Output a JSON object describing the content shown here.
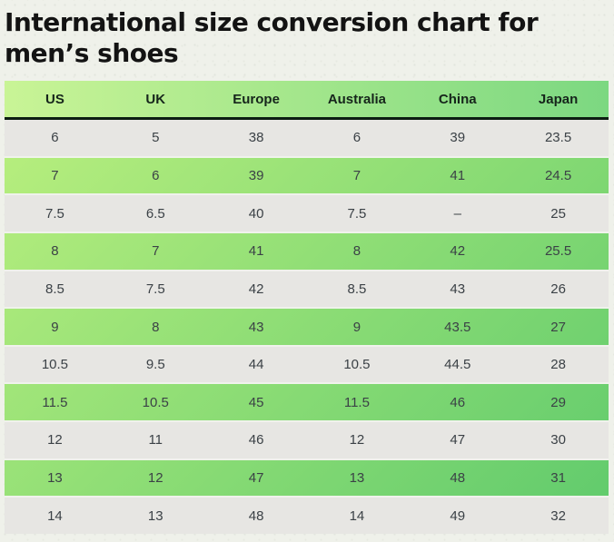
{
  "page": {
    "title_line1": "International size conversion chart for",
    "title_line2": "men’s shoes"
  },
  "table": {
    "columns": [
      "US",
      "UK",
      "Europe",
      "Australia",
      "China",
      "Japan"
    ],
    "rows": [
      [
        "6",
        "5",
        "38",
        "6",
        "39",
        "23.5"
      ],
      [
        "7",
        "6",
        "39",
        "7",
        "41",
        "24.5"
      ],
      [
        "7.5",
        "6.5",
        "40",
        "7.5",
        "–",
        "25"
      ],
      [
        "8",
        "7",
        "41",
        "8",
        "42",
        "25.5"
      ],
      [
        "8.5",
        "7.5",
        "42",
        "8.5",
        "43",
        "26"
      ],
      [
        "9",
        "8",
        "43",
        "9",
        "43.5",
        "27"
      ],
      [
        "10.5",
        "9.5",
        "44",
        "10.5",
        "44.5",
        "28"
      ],
      [
        "11.5",
        "10.5",
        "45",
        "11.5",
        "46",
        "29"
      ],
      [
        "12",
        "11",
        "46",
        "12",
        "47",
        "30"
      ],
      [
        "13",
        "12",
        "47",
        "13",
        "48",
        "31"
      ],
      [
        "14",
        "13",
        "48",
        "14",
        "49",
        "32"
      ]
    ]
  },
  "colors": {
    "title": "#131313",
    "header_gradient_start": "#c9f496",
    "header_gradient_end": "#7cd881",
    "header_border": "#0c1d12",
    "header_text": "#16251b",
    "body_gradient_start": "#b9ef7e",
    "body_gradient_end": "#5fca6c",
    "gray_row": "#e7e6e3",
    "separator": "#f0f2ec",
    "cell_text": "#3b4146",
    "page_background": "#eff1ea"
  }
}
